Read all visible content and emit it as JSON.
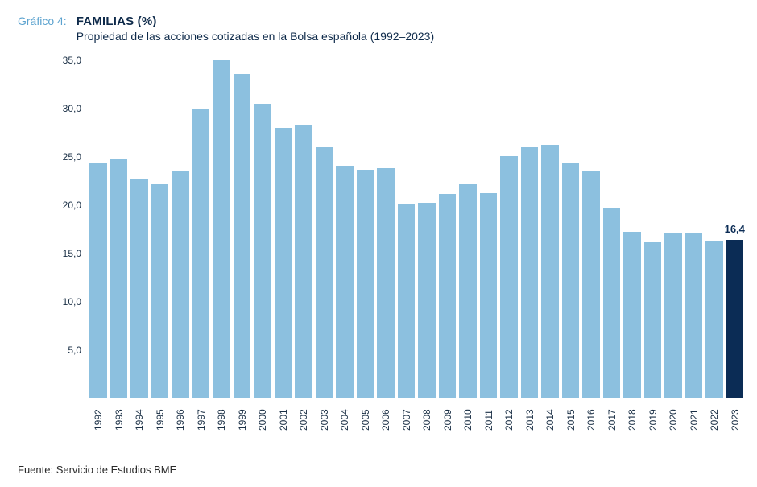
{
  "header": {
    "prefix": "Gráfico 4:",
    "title": "FAMILIAS (%)",
    "subtitle": "Propiedad de las acciones cotizadas en la Bolsa española (1992–2023)"
  },
  "footer": {
    "source": "Fuente: Servicio de Estudios BME"
  },
  "chart": {
    "type": "bar",
    "ylim": [
      0,
      35
    ],
    "ytick_step": 5,
    "yticks": [
      "5,0",
      "10,0",
      "15,0",
      "20,0",
      "25,0",
      "30,0",
      "35,0"
    ],
    "bar_color": "#8cc0df",
    "highlight_color": "#0b2c55",
    "axis_color": "#1a2f45",
    "label_fontsize": 12,
    "title_color": "#0e2a4a",
    "prefix_color": "#5ca3cf",
    "background_color": "#ffffff",
    "data": [
      {
        "year": "1992",
        "value": 24.4
      },
      {
        "year": "1993",
        "value": 24.8
      },
      {
        "year": "1994",
        "value": 22.7
      },
      {
        "year": "1995",
        "value": 22.1
      },
      {
        "year": "1996",
        "value": 23.5
      },
      {
        "year": "1997",
        "value": 30.0
      },
      {
        "year": "1998",
        "value": 35.1
      },
      {
        "year": "1999",
        "value": 33.6
      },
      {
        "year": "2000",
        "value": 30.5
      },
      {
        "year": "2001",
        "value": 28.0
      },
      {
        "year": "2002",
        "value": 28.3
      },
      {
        "year": "2003",
        "value": 26.0
      },
      {
        "year": "2004",
        "value": 24.1
      },
      {
        "year": "2005",
        "value": 23.6
      },
      {
        "year": "2006",
        "value": 23.8
      },
      {
        "year": "2007",
        "value": 20.1
      },
      {
        "year": "2008",
        "value": 20.2
      },
      {
        "year": "2009",
        "value": 21.1
      },
      {
        "year": "2010",
        "value": 22.2
      },
      {
        "year": "2011",
        "value": 21.2
      },
      {
        "year": "2012",
        "value": 25.1
      },
      {
        "year": "2013",
        "value": 26.1
      },
      {
        "year": "2014",
        "value": 26.2
      },
      {
        "year": "2015",
        "value": 24.4
      },
      {
        "year": "2016",
        "value": 23.5
      },
      {
        "year": "2017",
        "value": 19.7
      },
      {
        "year": "2018",
        "value": 17.2
      },
      {
        "year": "2019",
        "value": 16.1
      },
      {
        "year": "2020",
        "value": 17.1
      },
      {
        "year": "2021",
        "value": 17.1
      },
      {
        "year": "2022",
        "value": 16.2
      },
      {
        "year": "2023",
        "value": 16.4,
        "highlight": true,
        "label": "16,4"
      }
    ]
  }
}
